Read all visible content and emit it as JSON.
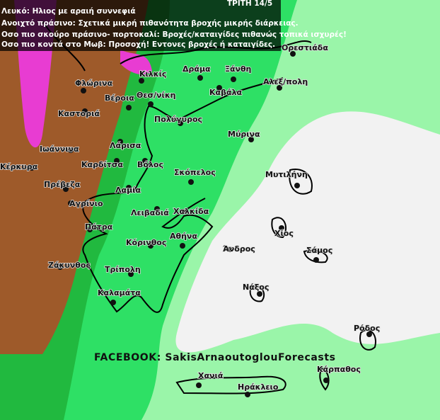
{
  "header": {
    "date": "ΤΡΙΤΗ 14/5",
    "legend": [
      "Λευκό: Ηλιος με αραιή συννεφιά",
      "Ανοιχτό πράσινο: Σχετικά μικρή πιθανότητα βροχής μικρής διάρκειας.",
      "Οσο πιο σκούρο πράσινο- πορτοκαλί: Βροχές/καταιγίδες πιθανώς τοπικά ισχυρές!",
      "Οσο πιο κοντά στο Μωβ: Προσοχή! Εντονες βροχές ή καταιγίδες."
    ]
  },
  "cities": [
    "Ορεστιάδα",
    "Δράμα",
    "Ξάνθη",
    "Κιλκίς",
    "Φλώρινα",
    "Αλεξ/πολη",
    "Βέροια",
    "Θεσ/νίκη",
    "Καβάλα",
    "Καστοριά",
    "Πολύγυρος",
    "Μύρινα",
    "Ιωάννινα",
    "Λάρισα",
    "Κέρκυρα",
    "Καρδίτσα",
    "Βόλος",
    "Σκόπελος",
    "Μυτιλήνη",
    "Πρέβεζα",
    "Λαμία",
    "Αγρίνιο",
    "Λειβαδιά",
    "Χαλκίδα",
    "Χίος",
    "Πάτρα",
    "Αθήνα",
    "Κόρινθος",
    "Άνδρος",
    "Σάμος",
    "Ζάκυνθος",
    "Τρίπολη",
    "Νάξος",
    "Καλαμάτα",
    "Ρόδος",
    "Κάρπαθος",
    "Χανιά",
    "Ηράκλειο"
  ],
  "footer": "FACEBOOK: SakisArnaoutoglouForecasts"
}
